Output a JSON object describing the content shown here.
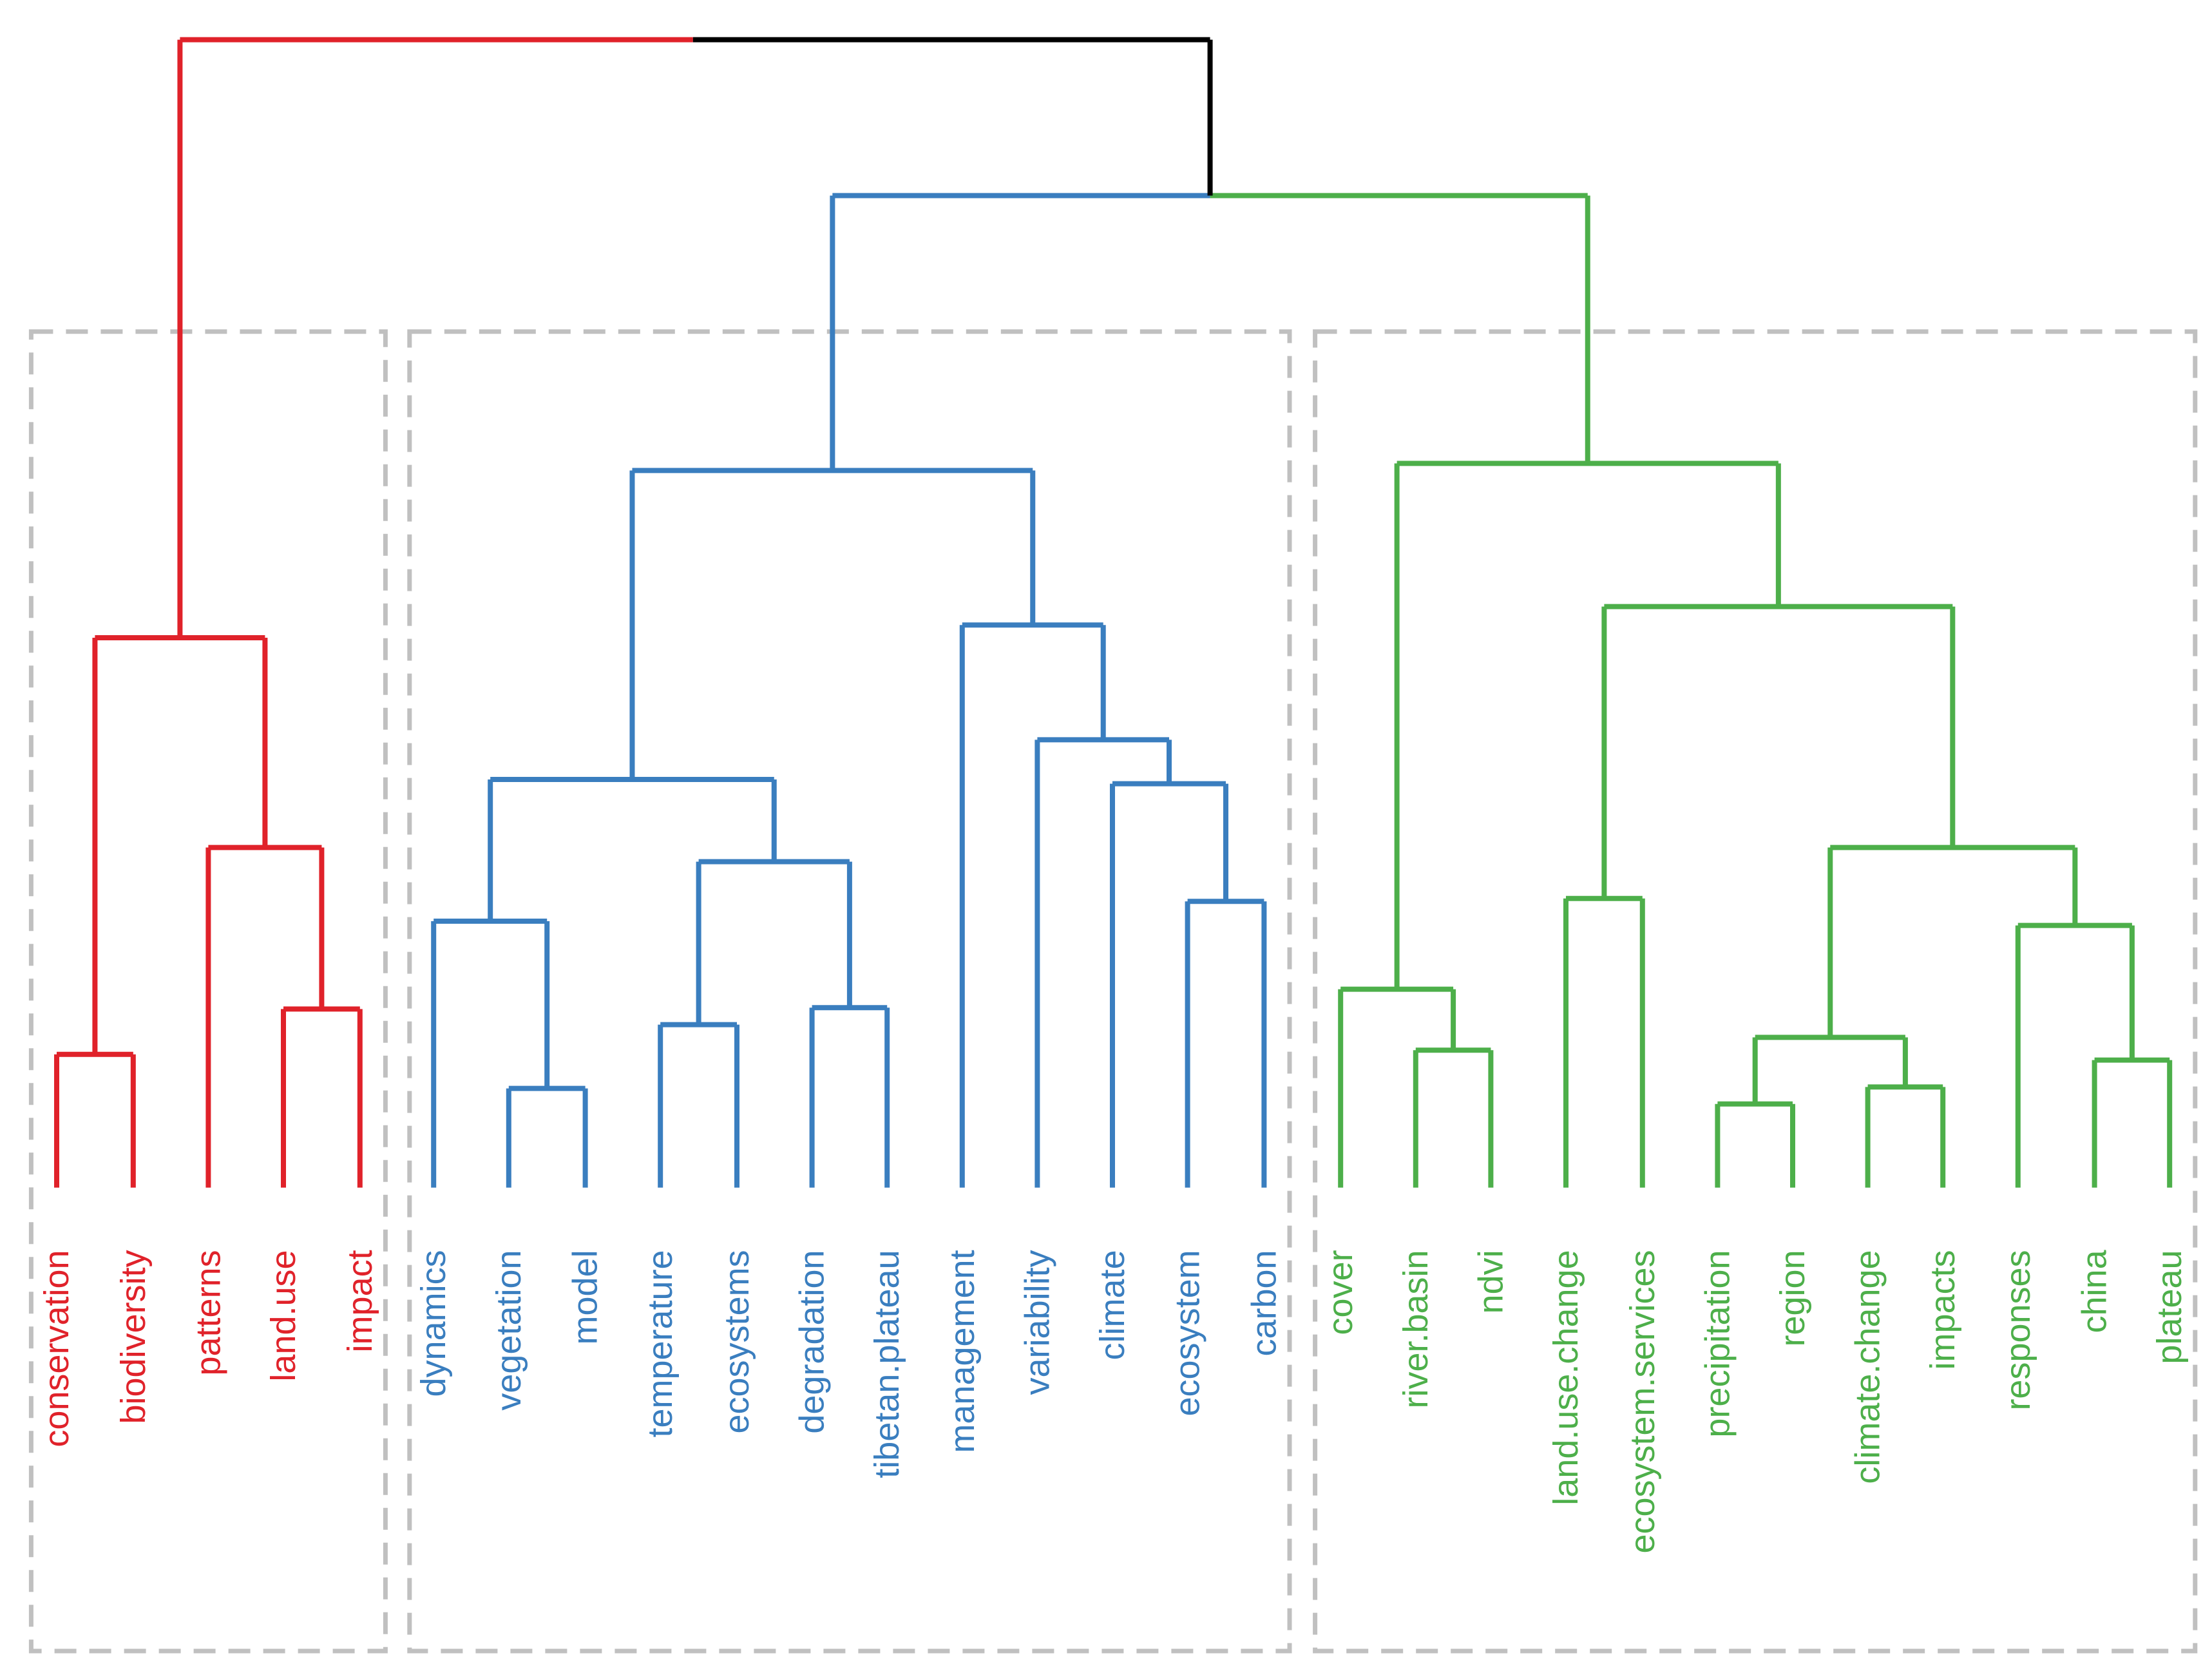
{
  "colors": {
    "root": "#000000",
    "red": "#e0222a",
    "blue": "#3a7ebf",
    "green": "#4daf4a",
    "box": "#c0c0c0"
  },
  "clusters": [
    {
      "id": "red",
      "color": "#e0222a",
      "leaves": [
        "conservation",
        "biodiversity",
        "patterns",
        "land.use",
        "impact"
      ]
    },
    {
      "id": "blue",
      "color": "#3a7ebf",
      "leaves": [
        "dynamics",
        "vegetation",
        "model",
        "temperature",
        "ecosystems",
        "degradation",
        "tibetan.plateau",
        "management",
        "variability",
        "climate",
        "ecosystem",
        "carbon"
      ]
    },
    {
      "id": "green",
      "color": "#4daf4a",
      "leaves": [
        "cover",
        "river.basin",
        "ndvi",
        "land.use.change",
        "ecosystem.services",
        "precipitation",
        "region",
        "climate.change",
        "impacts",
        "responses",
        "china",
        "plateau"
      ]
    }
  ]
}
